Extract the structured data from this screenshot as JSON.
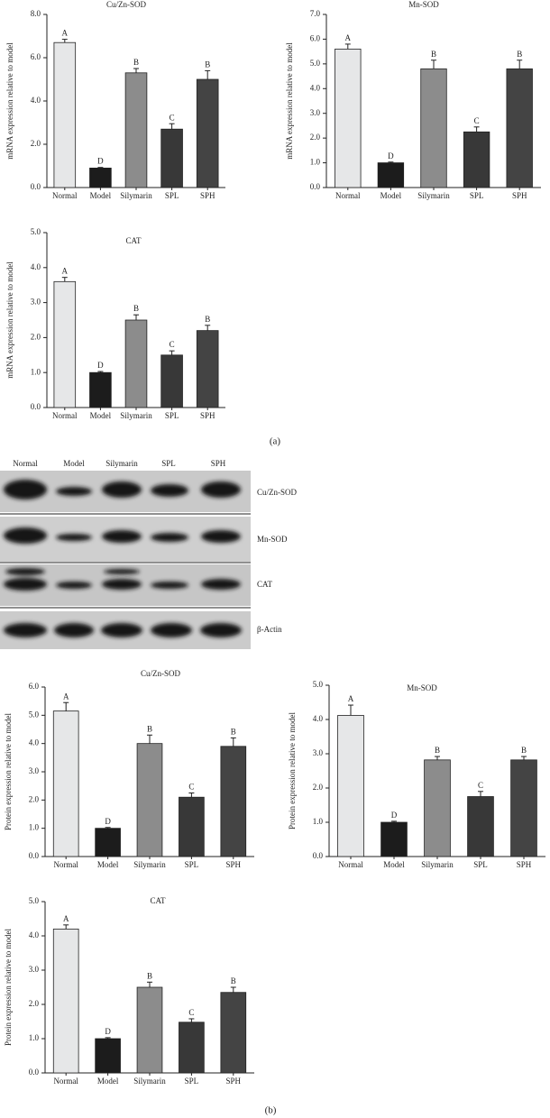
{
  "chart_data": [
    {
      "type": "bar",
      "title": "Cu/Zn-SOD",
      "ylabel": "mRNA expression relative to model",
      "categories": [
        "Normal",
        "Model",
        "Silymarin",
        "SPL",
        "SPH"
      ],
      "values": [
        6.7,
        0.9,
        5.3,
        2.7,
        5.0
      ],
      "errors": [
        0.15,
        0.03,
        0.2,
        0.25,
        0.4
      ],
      "letters": [
        "A",
        "D",
        "B",
        "C",
        "B"
      ],
      "colors": [
        "#e6e7e8",
        "#1c1c1c",
        "#8c8c8c",
        "#383838",
        "#444444"
      ],
      "ylim": [
        0,
        8
      ],
      "yticks": [
        {
          "value": 0,
          "label": "0.0"
        },
        {
          "value": 2,
          "label": "2.0"
        },
        {
          "value": 4,
          "label": "4.0"
        },
        {
          "value": 6,
          "label": "6.0"
        },
        {
          "value": 8,
          "label": "8.0"
        }
      ]
    },
    {
      "type": "bar",
      "title": "Mn-SOD",
      "ylabel": "mRNA expression relative to model",
      "categories": [
        "Normal",
        "Model",
        "Silymarin",
        "SPL",
        "SPH"
      ],
      "values": [
        5.6,
        1.0,
        4.8,
        2.25,
        4.8
      ],
      "errors": [
        0.2,
        0.03,
        0.35,
        0.2,
        0.35
      ],
      "letters": [
        "A",
        "D",
        "B",
        "C",
        "B"
      ],
      "colors": [
        "#e6e7e8",
        "#1c1c1c",
        "#8c8c8c",
        "#383838",
        "#444444"
      ],
      "ylim": [
        0,
        7
      ],
      "yticks": [
        {
          "value": 0,
          "label": "0.0"
        },
        {
          "value": 1,
          "label": "1.0"
        },
        {
          "value": 2,
          "label": "2.0"
        },
        {
          "value": 3,
          "label": "3.0"
        },
        {
          "value": 4,
          "label": "4.0"
        },
        {
          "value": 5,
          "label": "5.0"
        },
        {
          "value": 6,
          "label": "6.0"
        },
        {
          "value": 7,
          "label": "7.0"
        }
      ]
    },
    {
      "type": "bar",
      "title": "CAT",
      "ylabel": "mRNA expression relative to model",
      "categories": [
        "Normal",
        "Model",
        "Silymarin",
        "SPL",
        "SPH"
      ],
      "values": [
        3.6,
        1.0,
        2.5,
        1.5,
        2.2
      ],
      "errors": [
        0.12,
        0.03,
        0.15,
        0.12,
        0.15
      ],
      "letters": [
        "A",
        "D",
        "B",
        "C",
        "B"
      ],
      "colors": [
        "#e6e7e8",
        "#1c1c1c",
        "#8c8c8c",
        "#383838",
        "#444444"
      ],
      "ylim": [
        0,
        5
      ],
      "yticks": [
        {
          "value": 0,
          "label": "0.0"
        },
        {
          "value": 1,
          "label": "1.0"
        },
        {
          "value": 2,
          "label": "2.0"
        },
        {
          "value": 3,
          "label": "3.0"
        },
        {
          "value": 4,
          "label": "4.0"
        },
        {
          "value": 5,
          "label": "5.0"
        }
      ]
    },
    {
      "type": "bar",
      "title": "Cu/Zn-SOD",
      "ylabel": "Protein expression relative to model",
      "categories": [
        "Normal",
        "Model",
        "Silymarin",
        "SPL",
        "SPH"
      ],
      "values": [
        5.15,
        1.0,
        4.0,
        2.1,
        3.9
      ],
      "errors": [
        0.3,
        0.03,
        0.3,
        0.15,
        0.3
      ],
      "letters": [
        "A",
        "D",
        "B",
        "C",
        "B"
      ],
      "colors": [
        "#e6e7e8",
        "#1c1c1c",
        "#8c8c8c",
        "#383838",
        "#444444"
      ],
      "ylim": [
        0,
        6
      ],
      "yticks": [
        {
          "value": 0,
          "label": "0.0"
        },
        {
          "value": 1,
          "label": "1.0"
        },
        {
          "value": 2,
          "label": "2.0"
        },
        {
          "value": 3,
          "label": "3.0"
        },
        {
          "value": 4,
          "label": "4.0"
        },
        {
          "value": 5,
          "label": "5.0"
        },
        {
          "value": 6,
          "label": "6.0"
        }
      ]
    },
    {
      "type": "bar",
      "title": "Mn-SOD",
      "ylabel": "Protein expression relative to model",
      "categories": [
        "Normal",
        "Model",
        "Silymarin",
        "SPL",
        "SPH"
      ],
      "values": [
        4.12,
        1.0,
        2.82,
        1.75,
        2.82
      ],
      "errors": [
        0.3,
        0.03,
        0.1,
        0.15,
        0.1
      ],
      "letters": [
        "A",
        "D",
        "B",
        "C",
        "B"
      ],
      "colors": [
        "#e6e7e8",
        "#1c1c1c",
        "#8c8c8c",
        "#383838",
        "#444444"
      ],
      "ylim": [
        0,
        5
      ],
      "yticks": [
        {
          "value": 0,
          "label": "0.0"
        },
        {
          "value": 1,
          "label": "1.0"
        },
        {
          "value": 2,
          "label": "2.0"
        },
        {
          "value": 3,
          "label": "3.0"
        },
        {
          "value": 4,
          "label": "4.0"
        },
        {
          "value": 5,
          "label": "5.0"
        }
      ]
    },
    {
      "type": "bar",
      "title": "CAT",
      "ylabel": "Protein expression relative to model",
      "categories": [
        "Normal",
        "Model",
        "Silymarin",
        "SPL",
        "SPH"
      ],
      "values": [
        4.2,
        1.0,
        2.5,
        1.48,
        2.35
      ],
      "errors": [
        0.12,
        0.03,
        0.15,
        0.1,
        0.15
      ],
      "letters": [
        "A",
        "D",
        "B",
        "C",
        "B"
      ],
      "colors": [
        "#e6e7e8",
        "#1c1c1c",
        "#8c8c8c",
        "#383838",
        "#444444"
      ],
      "ylim": [
        0,
        5
      ],
      "yticks": [
        {
          "value": 0,
          "label": "0.0"
        },
        {
          "value": 1,
          "label": "1.0"
        },
        {
          "value": 2,
          "label": "2.0"
        },
        {
          "value": 3,
          "label": "3.0"
        },
        {
          "value": 4,
          "label": "4.0"
        },
        {
          "value": 5,
          "label": "5.0"
        }
      ]
    }
  ],
  "blot": {
    "lanes": [
      "Normal",
      "Model",
      "Silymarin",
      "SPL",
      "SPH"
    ],
    "bands": [
      "Cu/Zn-SOD",
      "Mn-SOD",
      "CAT",
      "β-Actin"
    ]
  },
  "panel_labels": [
    "(a)",
    "(b)"
  ]
}
